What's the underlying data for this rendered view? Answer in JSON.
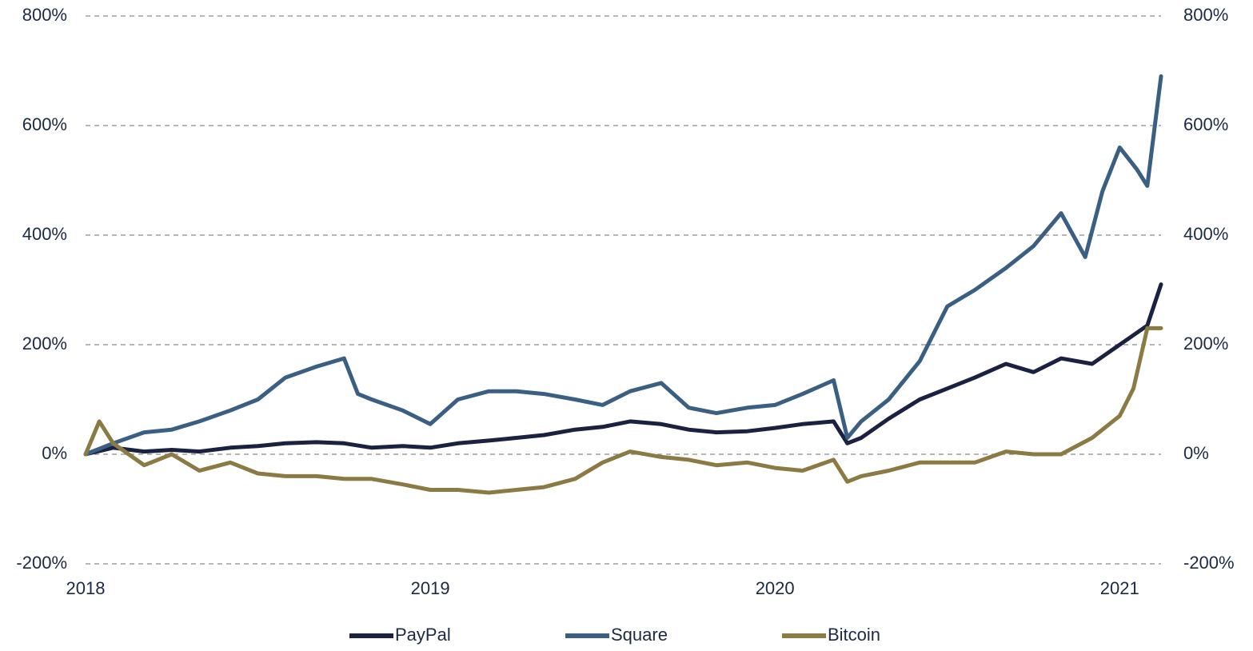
{
  "chart_data": {
    "type": "line",
    "xlim": [
      2018,
      2021.12
    ],
    "xticks": [
      2018,
      2019,
      2020,
      2021
    ],
    "ylim": [
      -200,
      800
    ],
    "yticks": [
      {
        "value": -200,
        "label": "-200%"
      },
      {
        "value": 0,
        "label": "0%"
      },
      {
        "value": 200,
        "label": "200%"
      },
      {
        "value": 400,
        "label": "400%"
      },
      {
        "value": 600,
        "label": "600%"
      },
      {
        "value": 800,
        "label": "800%"
      }
    ],
    "y2lim": [
      -200,
      800
    ],
    "y2ticks": [
      {
        "value": -200,
        "label": "-200%"
      },
      {
        "value": 0,
        "label": "0%"
      },
      {
        "value": 200,
        "label": "200%"
      },
      {
        "value": 400,
        "label": "400%"
      },
      {
        "value": 600,
        "label": "600%"
      },
      {
        "value": 800,
        "label": "800%"
      }
    ],
    "grid": true,
    "legend": "bottom",
    "series": [
      {
        "name": "PayPal",
        "color": "#1b2140",
        "x": [
          2018.0,
          2018.08,
          2018.17,
          2018.25,
          2018.33,
          2018.42,
          2018.5,
          2018.58,
          2018.67,
          2018.75,
          2018.83,
          2018.92,
          2019.0,
          2019.08,
          2019.17,
          2019.25,
          2019.33,
          2019.42,
          2019.5,
          2019.58,
          2019.67,
          2019.75,
          2019.83,
          2019.92,
          2020.0,
          2020.08,
          2020.17,
          2020.21,
          2020.25,
          2020.33,
          2020.42,
          2020.5,
          2020.58,
          2020.67,
          2020.75,
          2020.83,
          2020.92,
          2021.0,
          2021.08,
          2021.12
        ],
        "values": [
          0,
          12,
          5,
          8,
          5,
          12,
          15,
          20,
          22,
          20,
          12,
          15,
          12,
          20,
          25,
          30,
          35,
          45,
          50,
          60,
          55,
          45,
          40,
          42,
          48,
          55,
          60,
          20,
          30,
          65,
          100,
          120,
          140,
          165,
          150,
          175,
          165,
          200,
          235,
          310
        ]
      },
      {
        "name": "Square",
        "color": "#3a5f82",
        "x": [
          2018.0,
          2018.08,
          2018.17,
          2018.25,
          2018.33,
          2018.42,
          2018.5,
          2018.58,
          2018.67,
          2018.75,
          2018.79,
          2018.83,
          2018.92,
          2019.0,
          2019.08,
          2019.17,
          2019.25,
          2019.33,
          2019.42,
          2019.5,
          2019.58,
          2019.67,
          2019.75,
          2019.83,
          2019.92,
          2020.0,
          2020.08,
          2020.17,
          2020.21,
          2020.25,
          2020.33,
          2020.42,
          2020.5,
          2020.58,
          2020.67,
          2020.75,
          2020.83,
          2020.9,
          2020.95,
          2021.0,
          2021.05,
          2021.08,
          2021.12
        ],
        "values": [
          0,
          20,
          40,
          45,
          60,
          80,
          100,
          140,
          160,
          175,
          110,
          100,
          80,
          55,
          100,
          115,
          115,
          110,
          100,
          90,
          115,
          130,
          85,
          75,
          85,
          90,
          110,
          135,
          30,
          60,
          100,
          170,
          270,
          300,
          340,
          380,
          440,
          360,
          480,
          560,
          520,
          490,
          690
        ]
      },
      {
        "name": "Bitcoin",
        "color": "#8c7a44",
        "x": [
          2018.0,
          2018.04,
          2018.08,
          2018.17,
          2018.25,
          2018.33,
          2018.42,
          2018.5,
          2018.58,
          2018.67,
          2018.75,
          2018.83,
          2018.92,
          2019.0,
          2019.08,
          2019.17,
          2019.25,
          2019.33,
          2019.42,
          2019.5,
          2019.58,
          2019.67,
          2019.75,
          2019.83,
          2019.92,
          2020.0,
          2020.08,
          2020.17,
          2020.21,
          2020.25,
          2020.33,
          2020.42,
          2020.5,
          2020.58,
          2020.67,
          2020.75,
          2020.83,
          2020.92,
          2021.0,
          2021.04,
          2021.08,
          2021.12
        ],
        "values": [
          0,
          60,
          20,
          -20,
          0,
          -30,
          -15,
          -35,
          -40,
          -40,
          -45,
          -45,
          -55,
          -65,
          -65,
          -70,
          -65,
          -60,
          -45,
          -15,
          5,
          -5,
          -10,
          -20,
          -15,
          -25,
          -30,
          -10,
          -50,
          -40,
          -30,
          -15,
          -15,
          -15,
          5,
          0,
          0,
          30,
          70,
          120,
          230,
          230
        ]
      }
    ]
  }
}
